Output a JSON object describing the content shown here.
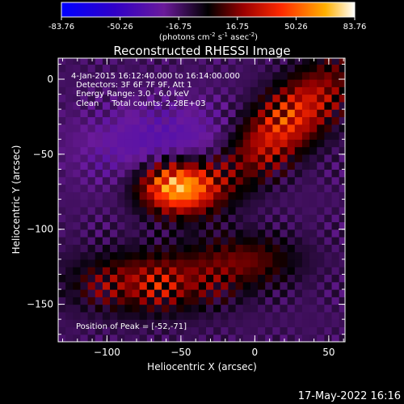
{
  "colorbar": {
    "ticks": [
      "-83.76",
      "-50.26",
      "-16.75",
      "16.75",
      "50.26",
      "83.76"
    ],
    "units": "(photons cm",
    "units_exp1": "-2",
    "units_mid": " s",
    "units_exp2": "-1",
    "units_mid2": " asec",
    "units_exp3": "-2",
    "units_end": ")"
  },
  "chart_data": {
    "type": "heatmap",
    "title": "Reconstructed RHESSI Image",
    "xlabel": "Heliocentric X (arcsec)",
    "ylabel": "Heliocentric Y (arcsec)",
    "xlim": [
      -133,
      61
    ],
    "ylim": [
      -175,
      14
    ],
    "xticks": [
      -100,
      -50,
      0,
      50
    ],
    "yticks": [
      0,
      -50,
      -100,
      -150
    ],
    "xtick_labels": [
      "−100",
      "−50",
      "0",
      "50"
    ],
    "ytick_labels": [
      "0",
      "−50",
      "−100",
      "−150"
    ],
    "colorbar_range": [
      -83.76,
      83.76
    ],
    "annotations": [
      "4-Jan-2015 16:12:40.000 to 16:14:00.000",
      "Detectors: 3F 6F 7F 9F, Att 1",
      "Energy Range: 3.0 - 6.0 keV",
      "Clean     Total counts: 2.28E+03"
    ],
    "peak_label": "Position of Peak = [-52,-71]",
    "peak": [
      -52,
      -71
    ]
  },
  "footer": {
    "date": "17-May-2022 16:16"
  }
}
